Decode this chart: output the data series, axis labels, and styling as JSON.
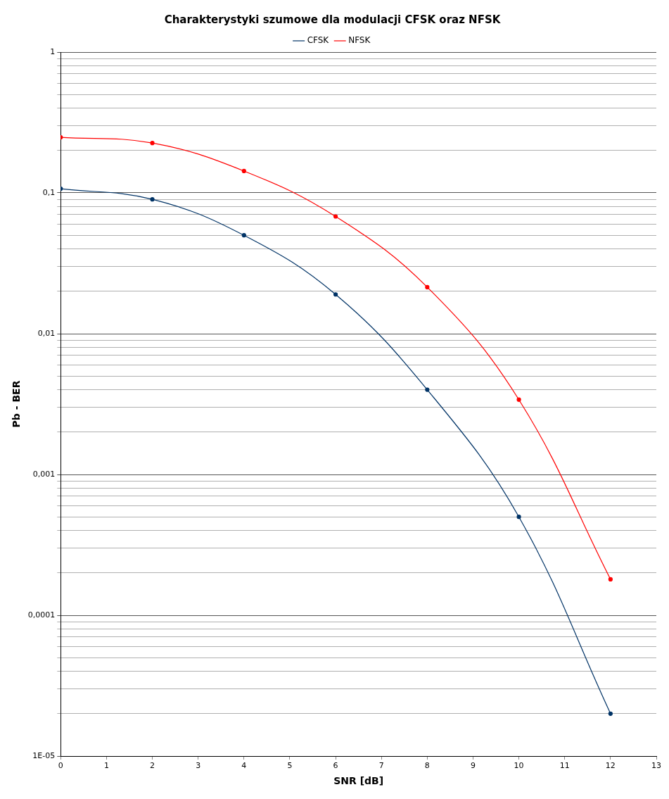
{
  "chart_data": {
    "type": "line",
    "title": "Charakterystyki szumowe dla modulacji CFSK oraz NFSK",
    "xlabel": "SNR [dB]",
    "ylabel": "Pb - BER",
    "x": [
      0,
      2,
      4,
      6,
      8,
      10,
      12
    ],
    "series": [
      {
        "name": "CFSK",
        "color": "#003366",
        "values": [
          0.107,
          0.09,
          0.05,
          0.019,
          0.004,
          0.0005,
          2e-05
        ]
      },
      {
        "name": "NFSK",
        "color": "#ff0000",
        "values": [
          0.248,
          0.226,
          0.143,
          0.068,
          0.0214,
          0.0034,
          0.00018
        ]
      }
    ],
    "log": "y",
    "xlim": [
      0,
      13
    ],
    "xticks": [
      0,
      1,
      2,
      3,
      4,
      5,
      6,
      7,
      8,
      9,
      10,
      11,
      12,
      13
    ],
    "ylim": [
      1e-05,
      1
    ],
    "yticks": [
      {
        "value": 1e-05,
        "label": "1E-05"
      },
      {
        "value": 0.0001,
        "label": "0,0001"
      },
      {
        "value": 0.001,
        "label": "0,001"
      },
      {
        "value": 0.01,
        "label": "0,01"
      },
      {
        "value": 0.1,
        "label": "0,1"
      },
      1
    ],
    "grid": "y",
    "legend": "top",
    "marker": "circle",
    "line_style": "solid"
  }
}
